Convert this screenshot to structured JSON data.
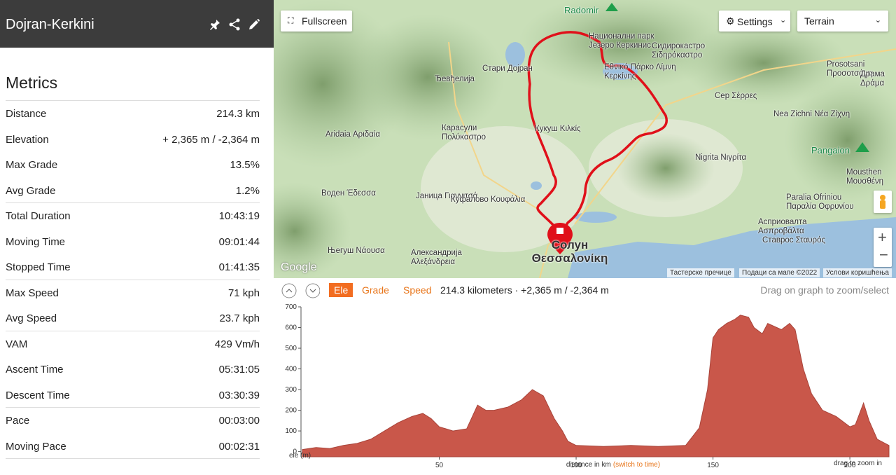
{
  "header": {
    "title": "Dojran-Kerkini"
  },
  "metrics": {
    "title": "Metrics",
    "groups": [
      [
        {
          "label": "Distance",
          "value": "214.3 km"
        },
        {
          "label": "Elevation",
          "value": "+ 2,365 m / -2,364 m"
        },
        {
          "label": "Max Grade",
          "value": "13.5%"
        },
        {
          "label": "Avg Grade",
          "value": "1.2%"
        }
      ],
      [
        {
          "label": "Total Duration",
          "value": "10:43:19"
        },
        {
          "label": "Moving Time",
          "value": "09:01:44"
        },
        {
          "label": "Stopped Time",
          "value": "01:41:35"
        }
      ],
      [
        {
          "label": "Max Speed",
          "value": "71 kph"
        },
        {
          "label": "Avg Speed",
          "value": "23.7 kph"
        }
      ],
      [
        {
          "label": "VAM",
          "value": "429 Vm/h"
        },
        {
          "label": "Ascent Time",
          "value": "05:31:05"
        },
        {
          "label": "Descent Time",
          "value": "03:30:39"
        }
      ],
      [
        {
          "label": "Pace",
          "value": "00:03:00"
        },
        {
          "label": "Moving Pace",
          "value": "00:02:31"
        }
      ]
    ]
  },
  "map": {
    "fullscreen": "Fullscreen",
    "settings": "Settings",
    "layer": "Terrain",
    "labels": [
      "Radomir",
      "Национални парк Језеро Керкинис",
      "Εθνικό Πάρκο Λίμνη Κερκίνης",
      "Сидирокастро Σιδηρόκαστρο",
      "Стари Дојран",
      "Ђевђелија",
      "Prosotsani Προσοτσάνη",
      "Драма Δράμα",
      "Сер Σέρρες",
      "Nea Zichni Νέα Ζίχνη",
      "Карасули Πολύκαστρο",
      "Кукуш Κιλκίς",
      "Aridaia Αριδαία",
      "Pangaion",
      "Nigrita Νιγρίτα",
      "Mousthen Μουσθένη",
      "Воден Έδεσσα",
      "Јаница Γιαννιτσά",
      "Куфалово Κουφάλια",
      "Paralia Ofriniou Παραλία Οφρυνίου",
      "Асприовалта Ασπροβάλτα",
      "Ставрос Σταυρός",
      "Његуш Νάουσα",
      "Александрија Αλεξάνδρεια",
      "Солун Θεσσαλονίκη",
      "Google"
    ],
    "attribution": [
      "Тастерске пречице",
      "Подаци са мапе ©2022",
      "Услови коришћења"
    ]
  },
  "toolbar": {
    "tabs": [
      "Ele",
      "Grade",
      "Speed"
    ],
    "summary": "214.3 kilometers · +2,365 m / -2,364 m",
    "hint": "Drag on graph to zoom/select"
  },
  "chart_data": {
    "type": "area",
    "y_label": "ele (m)",
    "x_label": "distance in km",
    "x_switch": "(switch to time)",
    "zoom_hint": "drag to zoom in",
    "color": "#c9574a",
    "x": [
      0,
      5,
      10,
      15,
      20,
      25,
      30,
      35,
      40,
      44,
      47,
      50,
      55,
      60,
      64,
      67,
      70,
      75,
      80,
      84,
      88,
      92,
      95,
      97,
      100,
      110,
      120,
      130,
      140,
      145,
      148,
      150,
      152,
      155,
      158,
      160,
      163,
      165,
      168,
      170,
      175,
      178,
      180,
      183,
      186,
      190,
      195,
      200,
      202,
      205,
      207,
      210,
      214.3
    ],
    "values": [
      10,
      20,
      15,
      30,
      40,
      60,
      100,
      140,
      170,
      185,
      160,
      120,
      100,
      110,
      225,
      200,
      200,
      215,
      250,
      300,
      270,
      160,
      100,
      50,
      30,
      25,
      30,
      25,
      30,
      115,
      300,
      550,
      590,
      620,
      640,
      660,
      650,
      600,
      570,
      620,
      590,
      620,
      590,
      400,
      280,
      200,
      170,
      120,
      130,
      235,
      150,
      60,
      30
    ],
    "xlim": [
      0,
      214.3
    ],
    "ylim": [
      -25,
      700
    ],
    "xticks": [
      50,
      100,
      150,
      200
    ],
    "yticks": [
      0,
      100,
      200,
      300,
      400,
      500,
      600,
      700
    ]
  }
}
